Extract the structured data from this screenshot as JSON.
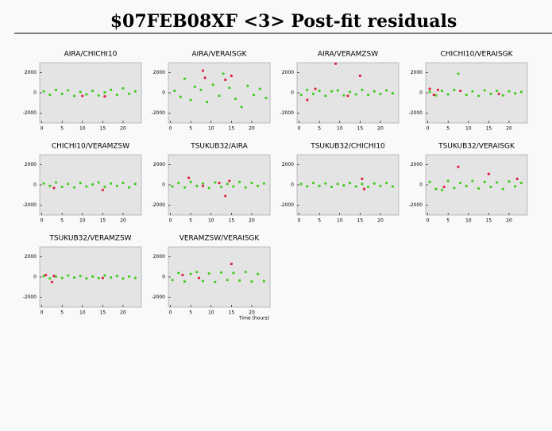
{
  "title": "$07FEB08XF <3> Post-fit residuals",
  "chart_data": [
    {
      "type": "scatter",
      "title": "AIRA/CHICHI10",
      "xlim": [
        -0.5,
        24.5
      ],
      "xticks": [
        0,
        5,
        10,
        15,
        20
      ],
      "ylim": [
        -3000,
        3000
      ],
      "yticks": [
        2000,
        0,
        -2000
      ],
      "series": [
        {
          "color": "#44cc22",
          "x": [
            0.5,
            2,
            3.5,
            5,
            6.5,
            8,
            9.5,
            11,
            12.5,
            14,
            15.5,
            17,
            18.5,
            20,
            21.5,
            23
          ],
          "values": [
            150,
            -200,
            300,
            -100,
            250,
            -300,
            100,
            -150,
            200,
            -250,
            50,
            300,
            -200,
            450,
            -100,
            150
          ]
        },
        {
          "color": "#dd2244",
          "x": [
            10,
            15.5
          ],
          "values": [
            -300,
            -350
          ]
        }
      ]
    },
    {
      "type": "scatter",
      "title": "AIRA/VERAISGK",
      "xlim": [
        -0.5,
        24.5
      ],
      "xticks": [
        0,
        5,
        10,
        15,
        20
      ],
      "ylim": [
        -3000,
        3000
      ],
      "yticks": [
        2000,
        0,
        -2000
      ],
      "series": [
        {
          "color": "#44cc22",
          "x": [
            1,
            2.5,
            3.5,
            5,
            6,
            7.5,
            9,
            10.5,
            12,
            13,
            14.5,
            16,
            17.5,
            19,
            20.5,
            22,
            23.5
          ],
          "values": [
            200,
            -400,
            1400,
            -700,
            600,
            300,
            -900,
            800,
            -300,
            1900,
            500,
            -600,
            -1400,
            700,
            -200,
            400,
            -500
          ]
        },
        {
          "color": "#dd2244",
          "x": [
            8,
            8.5,
            13.5,
            15
          ],
          "values": [
            2200,
            1500,
            1300,
            1700
          ]
        }
      ]
    },
    {
      "type": "scatter",
      "title": "AIRA/VERAMZSW",
      "xlim": [
        -0.5,
        24.5
      ],
      "xticks": [
        0,
        5,
        10,
        15,
        20
      ],
      "ylim": [
        -3000,
        3000
      ],
      "yticks": [
        2000,
        0,
        -2000
      ],
      "series": [
        {
          "color": "#44cc22",
          "x": [
            0.5,
            2,
            3.5,
            5,
            6.5,
            8,
            9.5,
            11,
            12.5,
            14,
            15.5,
            17,
            18.5,
            20,
            21.5,
            23
          ],
          "values": [
            -200,
            300,
            -100,
            200,
            -300,
            150,
            250,
            -250,
            100,
            -150,
            300,
            -200,
            150,
            -100,
            250,
            -50
          ]
        },
        {
          "color": "#dd2244",
          "x": [
            2,
            4,
            9,
            12,
            15
          ],
          "values": [
            -700,
            400,
            2900,
            -300,
            1700
          ]
        }
      ]
    },
    {
      "type": "scatter",
      "title": "CHICHI10/VERAISGK",
      "xlim": [
        -0.5,
        24.5
      ],
      "xticks": [
        0,
        5,
        10,
        15,
        20
      ],
      "ylim": [
        -3000,
        3000
      ],
      "yticks": [
        2000,
        0,
        -2000
      ],
      "series": [
        {
          "color": "#44cc22",
          "x": [
            0.5,
            2,
            3.5,
            5,
            6.5,
            7.5,
            9.5,
            11,
            12.5,
            14,
            15.5,
            17,
            18.5,
            20,
            21.5,
            23
          ],
          "values": [
            100,
            -250,
            200,
            -150,
            300,
            1900,
            -200,
            150,
            -300,
            250,
            -100,
            200,
            -250,
            150,
            -50,
            100
          ]
        },
        {
          "color": "#dd2244",
          "x": [
            0.5,
            1.5,
            2.5,
            8,
            17.5
          ],
          "values": [
            400,
            -200,
            300,
            200,
            -100
          ]
        }
      ]
    },
    {
      "type": "scatter",
      "title": "CHICHI10/VERAMZSW",
      "xlim": [
        -0.5,
        24.5
      ],
      "xticks": [
        0,
        5,
        10,
        15,
        20
      ],
      "ylim": [
        -3000,
        3000
      ],
      "yticks": [
        2000,
        0,
        -2000
      ],
      "series": [
        {
          "color": "#44cc22",
          "x": [
            0.5,
            2,
            3.5,
            5,
            6.5,
            8,
            9.5,
            11,
            12.5,
            14,
            15.5,
            17,
            18.5,
            20,
            21.5,
            23
          ],
          "values": [
            150,
            -100,
            250,
            -200,
            100,
            -250,
            200,
            -150,
            50,
            250,
            -200,
            150,
            -100,
            200,
            -250,
            100
          ]
        },
        {
          "color": "#dd2244",
          "x": [
            3,
            15
          ],
          "values": [
            -300,
            -500
          ]
        }
      ]
    },
    {
      "type": "scatter",
      "title": "TSUKUB32/AIRA",
      "xlim": [
        -0.5,
        24.5
      ],
      "xticks": [
        0,
        5,
        10,
        15,
        20
      ],
      "ylim": [
        -3000,
        3000
      ],
      "yticks": [
        2000,
        0,
        -2000
      ],
      "series": [
        {
          "color": "#44cc22",
          "x": [
            0.5,
            2,
            3.5,
            5,
            6.5,
            8,
            9.5,
            11,
            12.5,
            14,
            15.5,
            17,
            18.5,
            20,
            21.5,
            23
          ],
          "values": [
            -150,
            200,
            -250,
            300,
            -100,
            150,
            -300,
            250,
            -200,
            100,
            -150,
            300,
            -250,
            200,
            -100,
            150
          ]
        },
        {
          "color": "#dd2244",
          "x": [
            4.5,
            8,
            12,
            13.5,
            14.5
          ],
          "values": [
            700,
            -100,
            200,
            -1100,
            400
          ]
        }
      ]
    },
    {
      "type": "scatter",
      "title": "TSUKUB32/CHICHI10",
      "xlim": [
        -0.5,
        24.5
      ],
      "xticks": [
        0,
        5,
        10,
        15,
        20
      ],
      "ylim": [
        -3000,
        3000
      ],
      "yticks": [
        2000,
        0,
        -2000
      ],
      "series": [
        {
          "color": "#44cc22",
          "x": [
            0.5,
            2,
            3.5,
            5,
            6.5,
            8,
            9.5,
            11,
            12.5,
            14,
            15.5,
            17,
            18.5,
            20,
            21.5,
            23
          ],
          "values": [
            100,
            -150,
            200,
            -100,
            150,
            -200,
            100,
            -50,
            200,
            -150,
            100,
            -200,
            150,
            -100,
            200,
            -150
          ]
        },
        {
          "color": "#dd2244",
          "x": [
            15.5,
            16
          ],
          "values": [
            600,
            -400
          ]
        }
      ]
    },
    {
      "type": "scatter",
      "title": "TSUKUB32/VERAISGK",
      "xlim": [
        -0.5,
        24.5
      ],
      "xticks": [
        0,
        5,
        10,
        15,
        20
      ],
      "ylim": [
        -3000,
        3000
      ],
      "yticks": [
        2000,
        0,
        -2000
      ],
      "series": [
        {
          "color": "#44cc22",
          "x": [
            0.5,
            2,
            3.5,
            5,
            6.5,
            8,
            9.5,
            11,
            12.5,
            14,
            15.5,
            17,
            18.5,
            20,
            21.5,
            23
          ],
          "values": [
            300,
            -400,
            -500,
            400,
            -300,
            200,
            -100,
            400,
            -350,
            300,
            -200,
            250,
            -400,
            350,
            -150,
            200
          ]
        },
        {
          "color": "#dd2244",
          "x": [
            4,
            7.5,
            15,
            22
          ],
          "values": [
            -200,
            1800,
            1100,
            600
          ]
        }
      ]
    },
    {
      "type": "scatter",
      "title": "TSUKUB32/VERAMZSW",
      "xlim": [
        -0.5,
        24.5
      ],
      "xticks": [
        0,
        5,
        10,
        15,
        20
      ],
      "ylim": [
        -3000,
        3000
      ],
      "yticks": [
        2000,
        0,
        -2000
      ],
      "series": [
        {
          "color": "#44cc22",
          "x": [
            0.5,
            2,
            3.5,
            5,
            6.5,
            8,
            9.5,
            11,
            12.5,
            14,
            15.5,
            17,
            18.5,
            20,
            21.5,
            23
          ],
          "values": [
            100,
            -150,
            50,
            -100,
            150,
            -50,
            100,
            -150,
            50,
            -100,
            150,
            -50,
            100,
            -150,
            50,
            -100
          ]
        },
        {
          "color": "#dd2244",
          "x": [
            1,
            2.5,
            3,
            15
          ],
          "values": [
            200,
            -500,
            100,
            -100
          ]
        }
      ]
    },
    {
      "type": "scatter",
      "title": "VERAMZSW/VERAISGK",
      "xlim": [
        -0.5,
        24.5
      ],
      "xticks": [
        0,
        5,
        10,
        15,
        20
      ],
      "ylim": [
        -3000,
        3000
      ],
      "yticks": [
        2000,
        0,
        -2000
      ],
      "xlabel": "Time (hours)",
      "series": [
        {
          "color": "#44cc22",
          "x": [
            0.5,
            2,
            3.5,
            5,
            6.5,
            8,
            9.5,
            11,
            12.5,
            14,
            15.5,
            17,
            18.5,
            20,
            21.5,
            23
          ],
          "values": [
            -300,
            400,
            -450,
            300,
            500,
            -400,
            350,
            -500,
            450,
            -300,
            400,
            -350,
            500,
            -450,
            300,
            -400
          ]
        },
        {
          "color": "#dd2244",
          "x": [
            3,
            7,
            15
          ],
          "values": [
            200,
            -100,
            1300
          ]
        }
      ]
    }
  ]
}
